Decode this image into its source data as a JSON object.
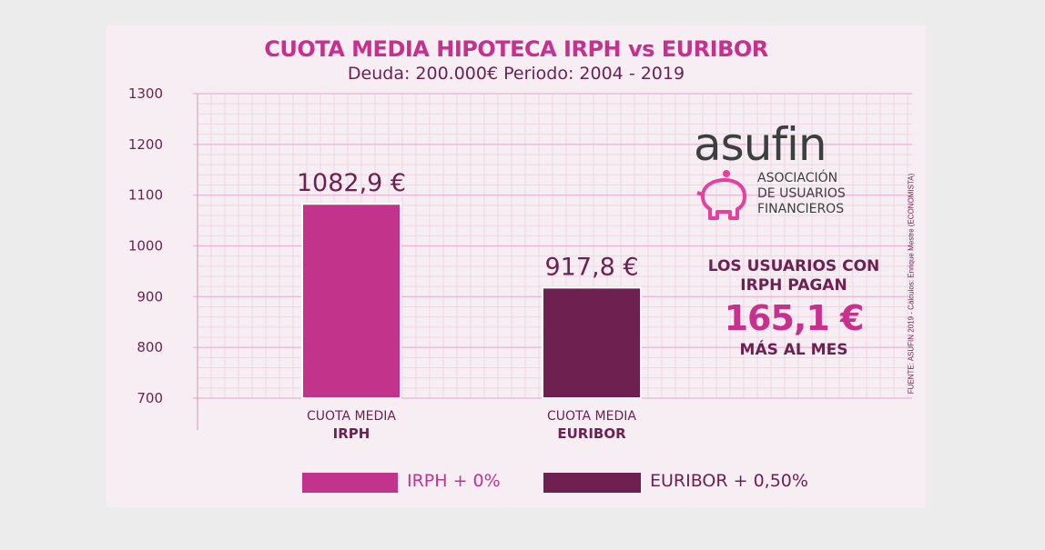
{
  "chart_data": {
    "type": "bar",
    "title": "CUOTA MEDIA HIPOTECA IRPH vs EURIBOR",
    "subtitle": "Deuda: 200.000€  Periodo: 2004 - 2019",
    "categories": [
      {
        "line1": "CUOTA MEDIA",
        "line2": "IRPH"
      },
      {
        "line1": "CUOTA MEDIA",
        "line2": "EURIBOR"
      }
    ],
    "values": [
      1082.9,
      917.8
    ],
    "value_labels": [
      "1082,9 €",
      "917,8 €"
    ],
    "ylim": [
      700,
      1300
    ],
    "yticks": [
      "700",
      "800",
      "900",
      "1000",
      "1100",
      "1200",
      "1300"
    ],
    "grid": true,
    "legend": [
      {
        "label": "IRPH + 0%",
        "color": "#c2348c"
      },
      {
        "label": "EURIBOR + 0,50%",
        "color": "#6e2150"
      }
    ],
    "legend_position": "bottom"
  },
  "logo": {
    "wordmark": "asufin",
    "tagline": [
      "ASOCIACIÓN",
      "DE USUARIOS",
      "FINANCIEROS"
    ]
  },
  "callout": {
    "line1": "LOS USUARIOS CON",
    "line2": "IRPH PAGAN",
    "amount": "165,1 €",
    "line3": "MÁS AL MES"
  },
  "source": "FUENTE: ASUFIN 2019 - Cálculos: Enrique Mestre (ECONOMISTA)",
  "colors": {
    "accent": "#c7308c",
    "dark": "#6e2150",
    "background": "#f7eef3"
  }
}
